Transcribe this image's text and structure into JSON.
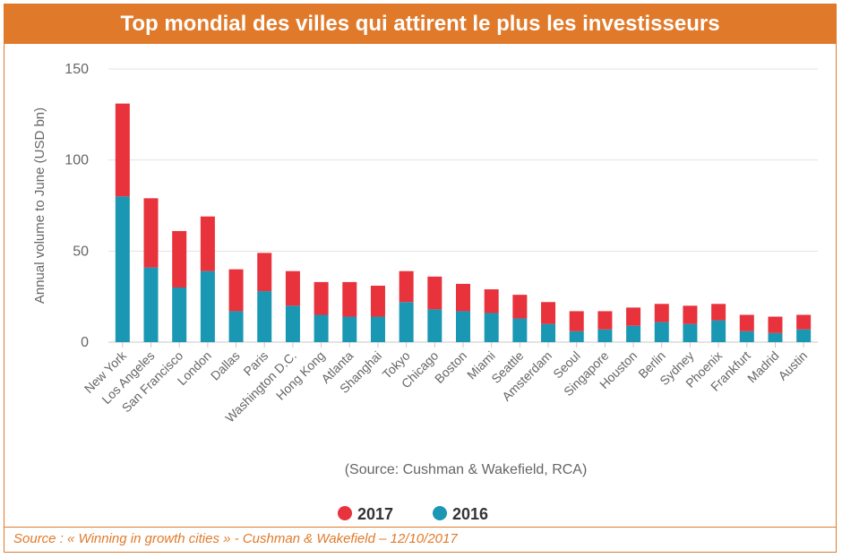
{
  "header": {
    "title": "Top mondial des villes qui attirent le plus les investisseurs"
  },
  "footer": {
    "source": "Source : « Winning in growth cities » - Cushman & Wakefield – 12/10/2017"
  },
  "chart_data": {
    "type": "bar",
    "stacked": true,
    "ylabel": "Annual volume to June (USD bn)",
    "xlabel": "",
    "ylim": [
      0,
      150
    ],
    "yticks": [
      0,
      50,
      100,
      150
    ],
    "grid": true,
    "annotation": "(Source: Cushman & Wakefield, RCA)",
    "legend_position": "bottom",
    "categories": [
      "New York",
      "Los Angeles",
      "San Francisco",
      "London",
      "Dallas",
      "Paris",
      "Washington D.C.",
      "Hong Kong",
      "Atlanta",
      "Shanghai",
      "Tokyo",
      "Chicago",
      "Boston",
      "Miami",
      "Seattle",
      "Amsterdam",
      "Seoul",
      "Singapore",
      "Houston",
      "Berlin",
      "Sydney",
      "Phoenix",
      "Frankfurt",
      "Madrid",
      "Austin"
    ],
    "series": [
      {
        "name": "2016",
        "color": "#1a97b3",
        "values": [
          80,
          41,
          30,
          39,
          17,
          28,
          20,
          15,
          14,
          14,
          22,
          18,
          17,
          16,
          13,
          10,
          6,
          7,
          9,
          11,
          10,
          12,
          6,
          5,
          7
        ]
      },
      {
        "name": "2017",
        "color": "#e8323c",
        "values": [
          51,
          38,
          31,
          30,
          23,
          21,
          19,
          18,
          19,
          17,
          17,
          18,
          15,
          13,
          13,
          12,
          11,
          10,
          10,
          10,
          10,
          9,
          9,
          9,
          8
        ]
      }
    ],
    "legend_order": [
      "2017",
      "2016"
    ]
  }
}
